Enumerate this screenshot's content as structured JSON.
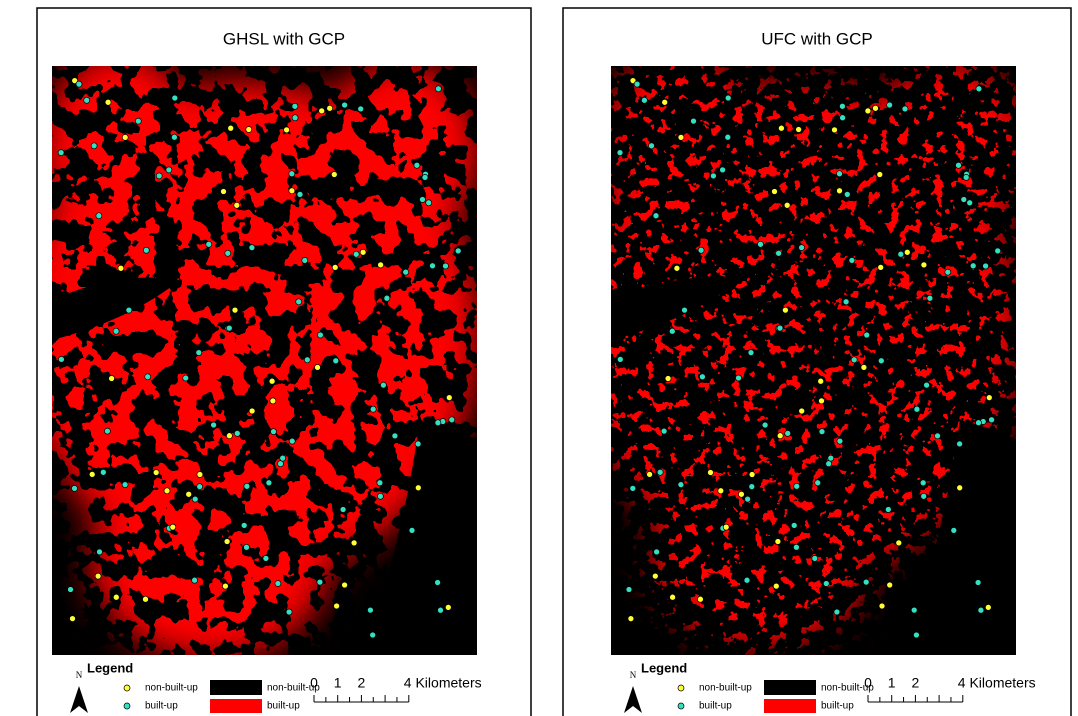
{
  "panels": [
    {
      "title": "GHSL with GCP",
      "north": "N",
      "legend": {
        "title": "Legend",
        "points": [
          "non-built-up",
          "built-up"
        ],
        "areas": [
          "non-built-up",
          "built-up"
        ]
      },
      "scale": {
        "ticks": [
          0,
          1,
          2
        ],
        "end": "4 Kilometers"
      }
    },
    {
      "title": "UFC with GCP",
      "north": "N",
      "legend": {
        "title": "Legend",
        "points": [
          "non-built-up",
          "built-up"
        ],
        "areas": [
          "non-built-up",
          "built-up"
        ]
      },
      "scale": {
        "ticks": [
          0,
          1,
          2
        ],
        "end": "4 Kilometers"
      }
    }
  ]
}
